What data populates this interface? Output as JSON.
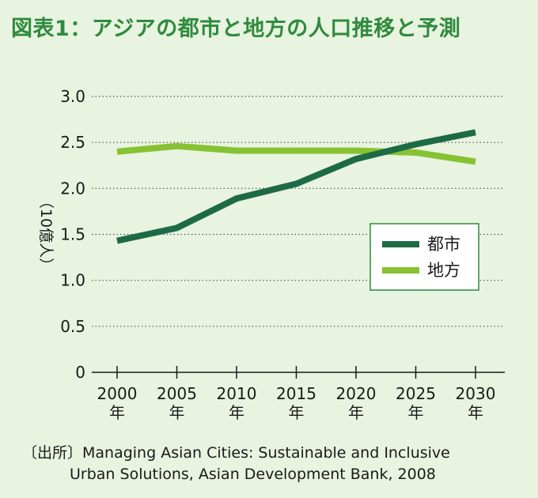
{
  "title": "図表1：アジアの都市と地方の人口推移と予測",
  "source": {
    "line1": "〔出所〕Managing Asian Cities: Sustainable and Inclusive",
    "line2": "Urban Solutions, Asian Development Bank, 2008"
  },
  "chart_data": {
    "type": "line",
    "title": "図表1：アジアの都市と地方の人口推移と予測",
    "xlabel": "",
    "ylabel": "（10億人）",
    "x": [
      "2000年",
      "2005年",
      "2010年",
      "2015年",
      "2020年",
      "2025年",
      "2030年"
    ],
    "x_ticks": [
      {
        "year": "2000",
        "unit": "年"
      },
      {
        "year": "2005",
        "unit": "年"
      },
      {
        "year": "2010",
        "unit": "年"
      },
      {
        "year": "2015",
        "unit": "年"
      },
      {
        "year": "2020",
        "unit": "年"
      },
      {
        "year": "2025",
        "unit": "年"
      },
      {
        "year": "2030",
        "unit": "年"
      }
    ],
    "y_ticks": [
      "0",
      "0.5",
      "1.0",
      "1.5",
      "2.0",
      "2.5",
      "3.0"
    ],
    "ylim": [
      0,
      3.0
    ],
    "grid": "horizontal dotted",
    "legend_position": "right",
    "series": [
      {
        "name": "都市",
        "color": "#1d6b45",
        "values": [
          1.43,
          1.57,
          1.89,
          2.05,
          2.32,
          2.48,
          2.61
        ]
      },
      {
        "name": "地方",
        "color": "#86c232",
        "values": [
          2.4,
          2.46,
          2.41,
          2.41,
          2.41,
          2.39,
          2.29
        ]
      }
    ]
  }
}
